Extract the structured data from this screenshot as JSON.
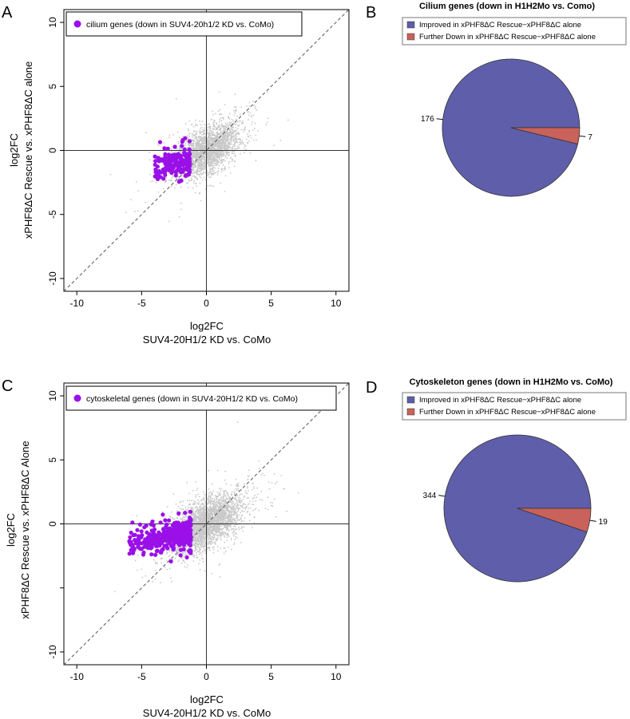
{
  "panels": {
    "a": "A",
    "b": "B",
    "c": "C",
    "d": "D"
  },
  "colors": {
    "gray_points": "#c8c8c8",
    "highlight": "#9a10e8",
    "pie_improved": "#5f5eaa",
    "pie_down": "#c9625a"
  },
  "chart_data": [
    {
      "type": "scatter",
      "panel": "A",
      "xlabel_line1": "log2FC",
      "xlabel_line2": "SUV4-20H1/2 KD vs. CoMo",
      "ylabel_line1": "log2FC",
      "ylabel_line2": "xPHF8ΔC Rescue vs. xPHF8ΔC alone",
      "xlim": [
        -11,
        11
      ],
      "ylim": [
        -11,
        11
      ],
      "xticks": [
        "-10",
        "-5",
        "0",
        "5",
        "10"
      ],
      "yticks": [
        "-10",
        "-5",
        "0",
        "5",
        "10"
      ],
      "reference_lines": [
        "x=0",
        "y=0",
        "y=x (dashed)"
      ],
      "legend": "cilium genes (down in SUV4-20h1/2 KD vs. CoMo)",
      "legend_position": "top-left",
      "series": [
        {
          "name": "cilium genes (down in SUV4-20h1/2 KD vs. CoMo)",
          "color": "#9a10e8",
          "summary": {
            "x_range": [
              -4,
              -1.3
            ],
            "y_range": [
              -2.6,
              1.6
            ],
            "count": 183
          }
        }
      ]
    },
    {
      "type": "pie",
      "panel": "B",
      "title": "Cilium genes (down in H1H2Mo vs. Como)",
      "legend": [
        "Improved in xPHF8ΔC Rescue−xPHF8ΔC alone",
        "Further Down  in xPHF8ΔC Rescue−xPHF8ΔC alone"
      ],
      "legend_position": "top",
      "values": [
        176,
        7
      ],
      "labels": [
        "176",
        "7"
      ],
      "colors": [
        "#5f5eaa",
        "#c9625a"
      ]
    },
    {
      "type": "scatter",
      "panel": "C",
      "xlabel_line1": "log2FC",
      "xlabel_line2": "SUV4-20H1/2 KD vs. CoMo",
      "ylabel_line1": "log2FC",
      "ylabel_line2": "xPHF8ΔC Rescue vs. xPHF8ΔC Alone",
      "xlim": [
        -11,
        11
      ],
      "ylim": [
        -11,
        11
      ],
      "xticks": [
        "-10",
        "-5",
        "0",
        "5",
        "10"
      ],
      "yticks": [
        "-10",
        "",
        "0",
        "5",
        "10"
      ],
      "reference_lines": [
        "x=0",
        "y=0",
        "y=x (dashed)"
      ],
      "legend": "cytoskeletal genes (down in SUV4-20H1/2 KD vs. CoMo)",
      "legend_position": "top-left",
      "series": [
        {
          "name": "cytoskeletal genes (down in SUV4-20H1/2 KD vs. CoMo)",
          "color": "#9a10e8",
          "summary": {
            "x_range": [
              -6,
              -1.2
            ],
            "y_range": [
              -3.8,
              1.8
            ],
            "count": 363
          }
        }
      ]
    },
    {
      "type": "pie",
      "panel": "D",
      "title": "Cytoskeleton genes (down in H1H2Mo vs. CoMo)",
      "legend": [
        "Improved in xPHF8ΔC Rescue−xPHF8ΔC alone",
        "Further Down  in xPHF8ΔC Rescue−xPHF8ΔC alone"
      ],
      "legend_position": "top",
      "values": [
        344,
        19
      ],
      "labels": [
        "344",
        "19"
      ],
      "colors": [
        "#5f5eaa",
        "#c9625a"
      ]
    }
  ]
}
